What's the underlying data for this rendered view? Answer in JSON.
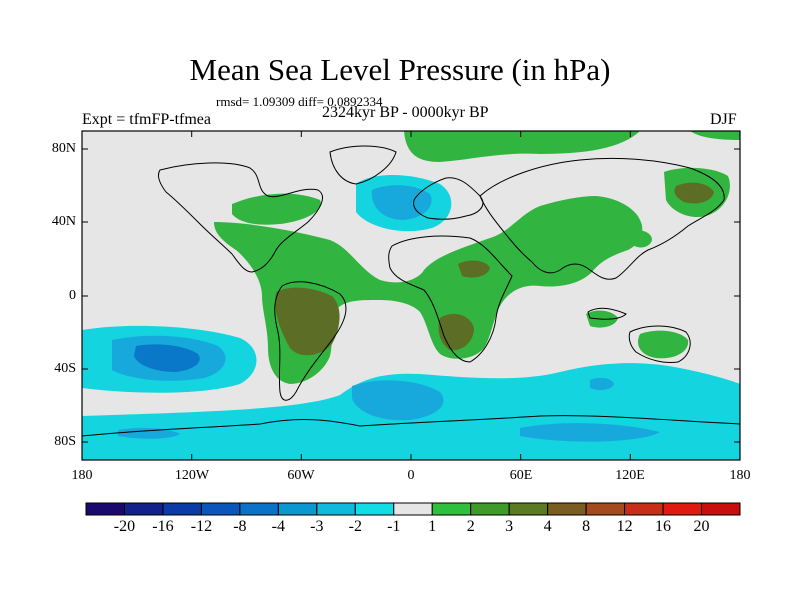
{
  "title": "Mean Sea Level Pressure (in hPa)",
  "stats_text": "rmsd= 1.09309 diff= 0.0892334",
  "experiment_label": "Expt = tfmFP-tfmea",
  "period_label": "2324kyr BP - 0000kyr BP",
  "season_label": "DJF",
  "lat_ticks": [
    "80N",
    "40N",
    "0",
    "40S",
    "80S"
  ],
  "lon_ticks": [
    "180",
    "120W",
    "60W",
    "0",
    "60E",
    "120E",
    "180"
  ],
  "colorbar": {
    "labels": [
      "-20",
      "-16",
      "-12",
      "-8",
      "-4",
      "-3",
      "-2",
      "-1",
      "1",
      "2",
      "3",
      "4",
      "8",
      "12",
      "16",
      "20"
    ],
    "colors": [
      "#1a0a6e",
      "#12218c",
      "#0c3aa8",
      "#0b56bd",
      "#0a73c9",
      "#0a98d0",
      "#0fbadc",
      "#13dde4",
      "#e6e6e6",
      "#2fbf3f",
      "#3f9a2a",
      "#5b7a24",
      "#7a5d22",
      "#a44a1e",
      "#c82d18",
      "#e01a10",
      "#c80e0e"
    ]
  },
  "legend_colors": {
    "neutral": "#e6e6e6",
    "green": "#31b540",
    "olive": "#5c6e25",
    "cyan": "#14d4e0",
    "lightblue": "#17a9dc",
    "blue": "#0a78c8",
    "darkblue": "#0b56bd"
  }
}
